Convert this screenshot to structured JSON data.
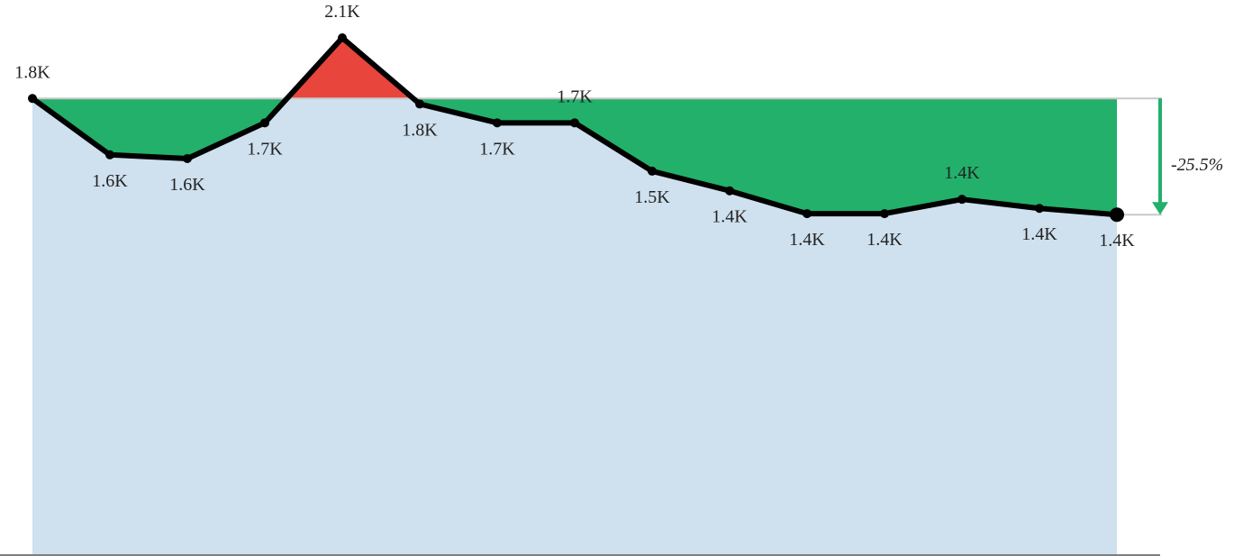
{
  "chart_data": {
    "type": "area",
    "title": "",
    "xlabel": "",
    "ylabel": "",
    "grid": false,
    "legend": "none",
    "ylim": [
      0,
      2200
    ],
    "values": [
      1812,
      1588,
      1573,
      1715,
      2053,
      1790,
      1715,
      1715,
      1523,
      1445,
      1354,
      1354,
      1411,
      1375,
      1350
    ],
    "data_labels": [
      "1.8K",
      "1.6K",
      "1.6K",
      "1.7K",
      "2.1K",
      "1.8K",
      "1.7K",
      "1.7K",
      "1.5K",
      "1.4K",
      "1.4K",
      "1.4K",
      "1.4K",
      "1.4K",
      "1.4K"
    ],
    "reference_value": 1812,
    "change_label": "-25.5%",
    "colors": {
      "base_area": "#cfe0ee",
      "decrease": "#22b06b",
      "increase": "#e8453c",
      "line": "#000000",
      "arrow": "#22b06b",
      "axis": "#555555",
      "reference_line": "#c8c8c8"
    }
  }
}
